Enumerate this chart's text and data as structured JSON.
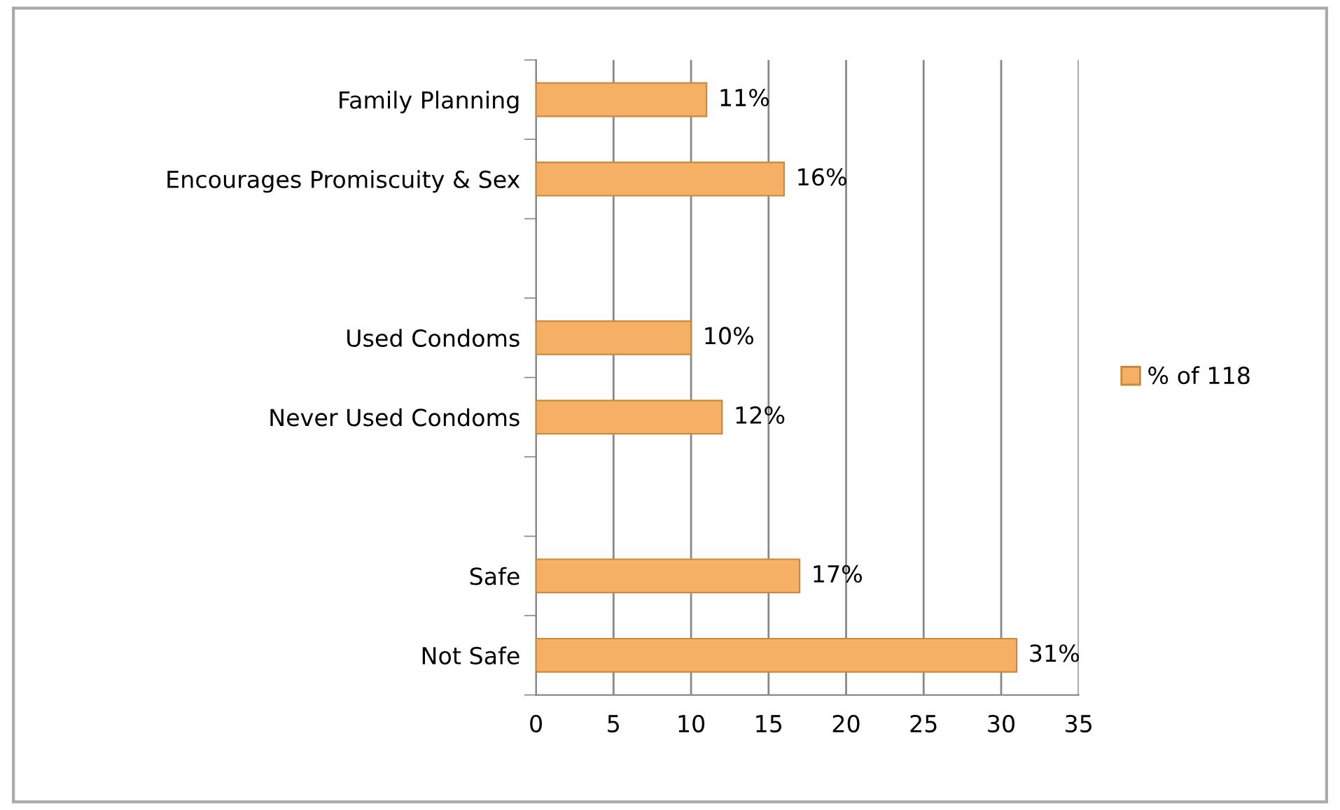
{
  "chart_data": {
    "type": "bar",
    "orientation": "horizontal",
    "categories": [
      "Family Planning",
      "Encourages Promiscuity & Sex",
      null,
      "Used Condoms",
      "Never Used Condoms",
      null,
      "Safe",
      "Not Safe"
    ],
    "series": [
      {
        "name": "% of 118",
        "color": "#f5b066",
        "values": [
          11,
          16,
          null,
          10,
          12,
          null,
          17,
          31
        ],
        "value_labels": [
          "11%",
          "16%",
          null,
          "10%",
          "12%",
          null,
          "17%",
          "31%"
        ]
      }
    ],
    "xlim": [
      0,
      35
    ],
    "xticks": [
      0,
      5,
      10,
      15,
      20,
      25,
      30,
      35
    ],
    "grid": "x",
    "legend": "right"
  }
}
